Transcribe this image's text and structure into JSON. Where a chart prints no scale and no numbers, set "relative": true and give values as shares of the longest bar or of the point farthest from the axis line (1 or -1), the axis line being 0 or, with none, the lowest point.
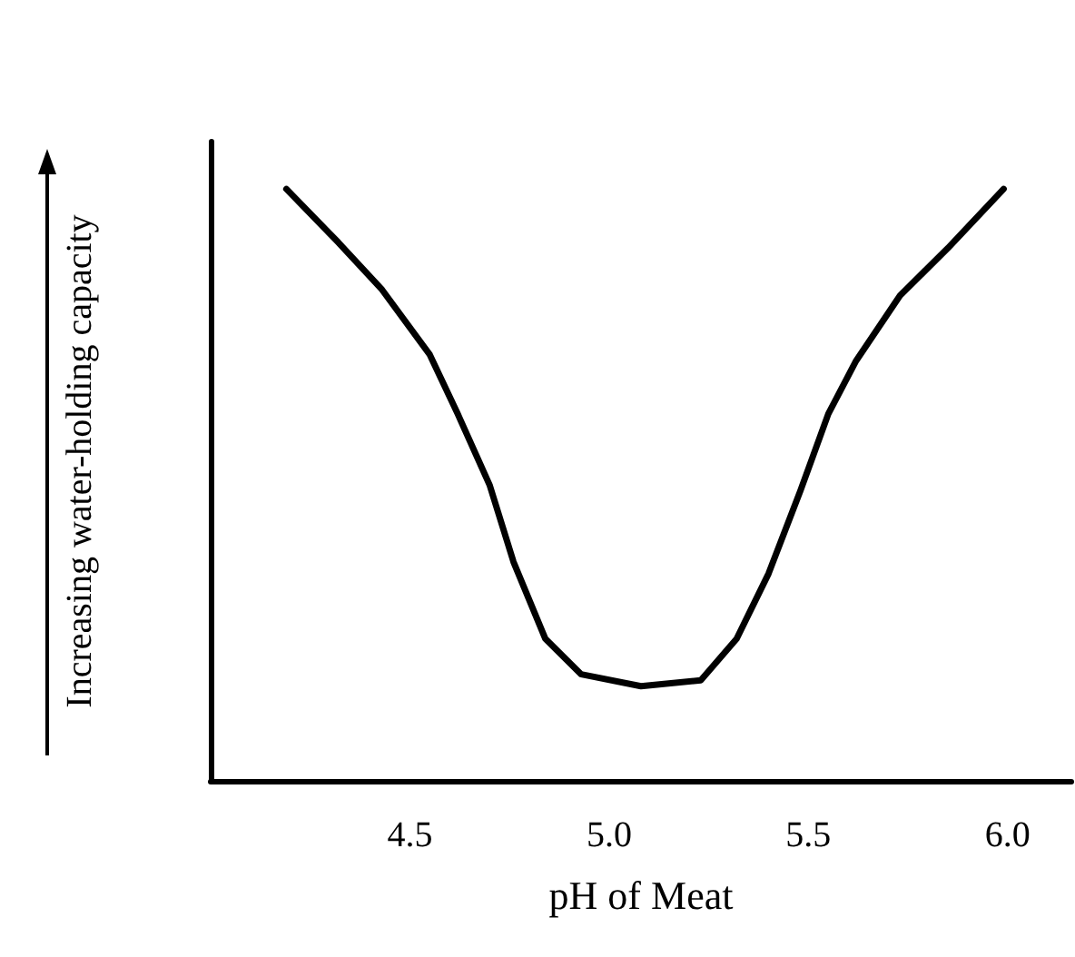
{
  "chart_data": {
    "type": "line",
    "relative": true,
    "xlabel": "pH of Meat",
    "ylabel": "Increasing water-holding capacity",
    "xlim": [
      4.0,
      6.16
    ],
    "xticks": [
      4.5,
      {
        "value": 5,
        "label": "5.0"
      },
      5.5,
      {
        "value": 6,
        "label": "6.0"
      }
    ],
    "grid": false,
    "marker": "none",
    "line_style": "solid",
    "x": [
      4.19,
      4.32,
      4.43,
      4.55,
      4.62,
      4.7,
      4.76,
      4.84,
      4.93,
      5.08,
      5.23,
      5.32,
      5.4,
      5.48,
      5.55,
      5.62,
      5.73,
      5.85,
      5.99
    ],
    "series": [
      {
        "color": "#000000",
        "values": [
          1.0,
          0.91,
          0.83,
          0.72,
          0.62,
          0.5,
          0.37,
          0.24,
          0.18,
          0.16,
          0.17,
          0.24,
          0.35,
          0.49,
          0.62,
          0.71,
          0.82,
          0.9,
          1.0
        ]
      }
    ]
  }
}
